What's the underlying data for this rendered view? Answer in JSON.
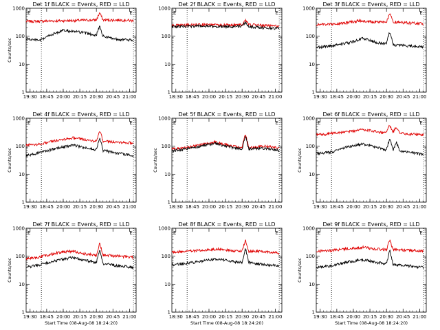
{
  "figure": {
    "background": "#ffffff",
    "axis_color": "#000000"
  },
  "chart_data": [
    {
      "type": "line",
      "title": "Det 1f BLACK = Events, RED = LLD",
      "xlabel": "",
      "ylabel": "Counts/sec",
      "yscale": "log",
      "ylim": [
        1,
        1000
      ],
      "yticks": [
        "1",
        "10",
        "100",
        "1000"
      ],
      "xlim": [
        "18:24",
        "21:10"
      ],
      "xticks": [
        "19:30",
        "18:45",
        "20:00",
        "20:15",
        "20:30",
        "20:45",
        "21:00"
      ],
      "vlines": [
        "18:47",
        "21:06"
      ],
      "markers": [
        {
          "label": "E",
          "at": "18:24"
        },
        {
          "label": "E",
          "at": "20:58"
        }
      ],
      "series": [
        {
          "name": "LLD",
          "color": "#e00000",
          "values": {
            "18:24": 340,
            "19:30": 360,
            "19:45": 370,
            "20:10": 380,
            "20:15": 700,
            "20:20": 380,
            "20:45": 380,
            "21:06": 360
          }
        },
        {
          "name": "Events",
          "color": "#000000",
          "values": {
            "18:24": 80,
            "18:45": 70,
            "19:00": 110,
            "19:20": 160,
            "19:45": 140,
            "20:10": 110,
            "20:15": 230,
            "20:20": 100,
            "20:40": 80,
            "21:06": 70
          }
        }
      ]
    },
    {
      "type": "line",
      "title": "Det 2f BLACK = Events, RED = LLD",
      "xlabel": "",
      "ylabel": "",
      "yscale": "log",
      "ylim": [
        1,
        1000
      ],
      "yticks": [
        "1",
        "10",
        "100",
        "1000"
      ],
      "xlim": [
        "18:24",
        "21:10"
      ],
      "xticks": [
        "18:30",
        "18:45",
        "20:00",
        "20:15",
        "20:30",
        "20:45",
        "21:00"
      ],
      "vlines": [
        "18:47",
        "21:06"
      ],
      "markers": [
        {
          "label": "E",
          "at": "18:24"
        },
        {
          "label": "E",
          "at": "20:58"
        }
      ],
      "series": [
        {
          "name": "LLD",
          "color": "#e00000",
          "values": {
            "18:24": 240,
            "19:00": 260,
            "19:45": 250,
            "20:10": 260,
            "20:15": 370,
            "20:20": 260,
            "20:45": 240,
            "21:06": 230
          }
        },
        {
          "name": "Events",
          "color": "#000000",
          "values": {
            "18:24": 220,
            "19:00": 230,
            "19:45": 220,
            "20:10": 230,
            "20:15": 310,
            "20:20": 220,
            "20:45": 200,
            "21:06": 190
          }
        }
      ]
    },
    {
      "type": "line",
      "title": "Det 3f BLACK = Events, RED = LLD",
      "xlabel": "",
      "ylabel": "",
      "yscale": "log",
      "ylim": [
        1,
        1000
      ],
      "yticks": [
        "1",
        "10",
        "100",
        "1000"
      ],
      "xlim": [
        "18:24",
        "21:10"
      ],
      "xticks": [
        "19:30",
        "18:45",
        "20:00",
        "20:15",
        "20:30",
        "20:45",
        "21:00"
      ],
      "vlines": [
        "18:47",
        "21:06"
      ],
      "markers": [
        {
          "label": "E",
          "at": "18:24"
        },
        {
          "label": "E",
          "at": "20:58"
        }
      ],
      "series": [
        {
          "name": "LLD",
          "color": "#e00000",
          "values": {
            "18:24": 260,
            "19:00": 280,
            "19:30": 360,
            "19:50": 330,
            "20:10": 320,
            "20:15": 660,
            "20:20": 320,
            "20:45": 300,
            "21:06": 280
          }
        },
        {
          "name": "Events",
          "color": "#000000",
          "values": {
            "18:24": 40,
            "18:45": 45,
            "19:15": 60,
            "19:35": 85,
            "19:55": 60,
            "20:10": 55,
            "20:15": 150,
            "20:20": 50,
            "20:45": 45,
            "21:06": 40
          }
        }
      ]
    },
    {
      "type": "line",
      "title": "Det 4f BLACK = Events, RED = LLD",
      "xlabel": "",
      "ylabel": "Counts/sec",
      "yscale": "log",
      "ylim": [
        1,
        1000
      ],
      "yticks": [
        "1",
        "10",
        "100",
        "1000"
      ],
      "xlim": [
        "18:24",
        "21:10"
      ],
      "xticks": [
        "19:30",
        "18:45",
        "20:00",
        "20:15",
        "20:30",
        "20:45",
        "21:00"
      ],
      "vlines": [
        "18:47",
        "21:06"
      ],
      "markers": [
        {
          "label": "E",
          "at": "18:24"
        },
        {
          "label": "E",
          "at": "20:58"
        }
      ],
      "series": [
        {
          "name": "LLD",
          "color": "#e00000",
          "values": {
            "18:24": 110,
            "18:45": 120,
            "19:15": 170,
            "19:35": 200,
            "19:55": 170,
            "20:10": 150,
            "20:15": 380,
            "20:20": 150,
            "20:45": 140,
            "21:06": 130
          }
        },
        {
          "name": "Events",
          "color": "#000000",
          "values": {
            "18:24": 45,
            "18:45": 60,
            "19:15": 90,
            "19:35": 110,
            "19:55": 85,
            "20:10": 75,
            "20:15": 210,
            "20:20": 70,
            "20:45": 55,
            "21:06": 45
          }
        }
      ]
    },
    {
      "type": "line",
      "title": "Det 5f BLACK = Events, RED = LLD",
      "xlabel": "",
      "ylabel": "Counts/sec",
      "yscale": "log",
      "ylim": [
        1,
        1000
      ],
      "yticks": [
        "1",
        "10",
        "100",
        "1000"
      ],
      "xlim": [
        "18:24",
        "21:10"
      ],
      "xticks": [
        "18:30",
        "18:45",
        "20:00",
        "20:15",
        "20:30",
        "20:45",
        "21:00"
      ],
      "vlines": [
        "18:47",
        "21:06"
      ],
      "markers": [
        {
          "label": "E",
          "at": "18:24"
        },
        {
          "label": "E",
          "at": "20:58"
        }
      ],
      "series": [
        {
          "name": "LLD",
          "color": "#e00000",
          "values": {
            "18:24": 80,
            "18:45": 90,
            "19:15": 120,
            "19:30": 140,
            "19:55": 100,
            "20:10": 90,
            "20:15": 280,
            "20:20": 90,
            "20:45": 100,
            "21:06": 85
          }
        },
        {
          "name": "Events",
          "color": "#000000",
          "values": {
            "18:24": 70,
            "18:45": 80,
            "19:15": 110,
            "19:30": 125,
            "19:55": 90,
            "20:10": 80,
            "20:15": 240,
            "20:20": 80,
            "20:45": 85,
            "21:06": 70
          }
        }
      ]
    },
    {
      "type": "line",
      "title": "Det 6f BLACK = Events, RED = LLD",
      "xlabel": "",
      "ylabel": "Counts/sec",
      "yscale": "log",
      "ylim": [
        1,
        1000
      ],
      "yticks": [
        "1",
        "10",
        "100",
        "1000"
      ],
      "xlim": [
        "18:24",
        "21:10"
      ],
      "xticks": [
        "19:30",
        "18:45",
        "20:00",
        "20:15",
        "20:30",
        "20:45",
        "21:00"
      ],
      "vlines": [
        "18:47",
        "21:06"
      ],
      "markers": [
        {
          "label": "E",
          "at": "18:24"
        },
        {
          "label": "E",
          "at": "20:58"
        }
      ],
      "series": [
        {
          "name": "LLD",
          "color": "#e00000",
          "values": {
            "18:24": 260,
            "18:45": 280,
            "19:15": 330,
            "19:35": 400,
            "19:55": 330,
            "20:10": 300,
            "20:15": 580,
            "20:20": 320,
            "20:25": 480,
            "20:30": 300,
            "21:06": 250
          }
        },
        {
          "name": "Events",
          "color": "#000000",
          "values": {
            "18:24": 55,
            "18:45": 60,
            "19:15": 100,
            "19:35": 120,
            "19:55": 90,
            "20:10": 75,
            "20:15": 200,
            "20:20": 70,
            "20:25": 140,
            "20:30": 70,
            "21:06": 50
          }
        }
      ]
    },
    {
      "type": "line",
      "title": "Det 7f BLACK = Events, RED = LLD",
      "xlabel": "Start Time (08-Aug-08 18:24:20)",
      "ylabel": "Counts/sec",
      "yscale": "log",
      "ylim": [
        1,
        1000
      ],
      "yticks": [
        "1",
        "10",
        "100",
        "1000"
      ],
      "xlim": [
        "18:24",
        "21:10"
      ],
      "xticks": [
        "19:30",
        "18:45",
        "20:00",
        "20:15",
        "20:30",
        "20:45",
        "21:00"
      ],
      "vlines": [
        "18:47",
        "21:06"
      ],
      "markers": [
        {
          "label": "E",
          "at": "18:24"
        },
        {
          "label": "E",
          "at": "20:58"
        }
      ],
      "series": [
        {
          "name": "LLD",
          "color": "#e00000",
          "values": {
            "18:24": 80,
            "18:45": 95,
            "19:15": 140,
            "19:35": 150,
            "19:55": 120,
            "20:10": 110,
            "20:15": 300,
            "20:20": 110,
            "20:45": 100,
            "21:06": 90
          }
        },
        {
          "name": "Events",
          "color": "#000000",
          "values": {
            "18:24": 40,
            "18:45": 50,
            "19:15": 75,
            "19:35": 90,
            "19:55": 70,
            "20:10": 60,
            "20:15": 160,
            "20:20": 55,
            "20:45": 45,
            "21:06": 40
          }
        }
      ]
    },
    {
      "type": "line",
      "title": "Det 8f BLACK = Events, RED = LLD",
      "xlabel": "Start Time (08-Aug-08 18:24:20)",
      "ylabel": "",
      "yscale": "log",
      "ylim": [
        1,
        1000
      ],
      "yticks": [
        "1",
        "10",
        "100",
        "1000"
      ],
      "xlim": [
        "18:24",
        "21:10"
      ],
      "xticks": [
        "18:30",
        "18:45",
        "20:00",
        "20:15",
        "20:30",
        "20:45",
        "21:00"
      ],
      "vlines": [
        "18:47",
        "21:06"
      ],
      "markers": [
        {
          "label": "E",
          "at": "18:24"
        },
        {
          "label": "E",
          "at": "20:58"
        }
      ],
      "series": [
        {
          "name": "LLD",
          "color": "#e00000",
          "values": {
            "18:24": 140,
            "18:45": 150,
            "19:15": 170,
            "19:35": 180,
            "19:55": 160,
            "20:10": 150,
            "20:15": 380,
            "20:20": 150,
            "20:45": 150,
            "21:06": 130
          }
        },
        {
          "name": "Events",
          "color": "#000000",
          "values": {
            "18:24": 50,
            "18:45": 55,
            "19:15": 70,
            "19:35": 80,
            "19:55": 65,
            "20:10": 60,
            "20:15": 190,
            "20:20": 60,
            "20:45": 50,
            "21:06": 45
          }
        }
      ]
    },
    {
      "type": "line",
      "title": "Det 9f BLACK = Events, RED = LLD",
      "xlabel": "Start Time (08-Aug-08 18:24:20)",
      "ylabel": "Counts/sec",
      "yscale": "log",
      "ylim": [
        1,
        1000
      ],
      "yticks": [
        "1",
        "10",
        "100",
        "1000"
      ],
      "xlim": [
        "18:24",
        "21:10"
      ],
      "xticks": [
        "19:30",
        "18:45",
        "20:00",
        "20:15",
        "20:30",
        "20:45",
        "21:00"
      ],
      "vlines": [
        "18:47",
        "21:06"
      ],
      "markers": [
        {
          "label": "E",
          "at": "18:24"
        },
        {
          "label": "E",
          "at": "20:58"
        }
      ],
      "series": [
        {
          "name": "LLD",
          "color": "#e00000",
          "values": {
            "18:24": 150,
            "18:45": 160,
            "19:15": 190,
            "19:35": 210,
            "19:55": 180,
            "20:10": 170,
            "20:15": 380,
            "20:20": 170,
            "20:45": 165,
            "21:06": 150
          }
        },
        {
          "name": "Events",
          "color": "#000000",
          "values": {
            "18:24": 40,
            "18:45": 45,
            "19:15": 65,
            "19:35": 75,
            "19:55": 60,
            "20:10": 55,
            "20:15": 160,
            "20:20": 50,
            "20:45": 45,
            "21:06": 40
          }
        }
      ]
    }
  ]
}
